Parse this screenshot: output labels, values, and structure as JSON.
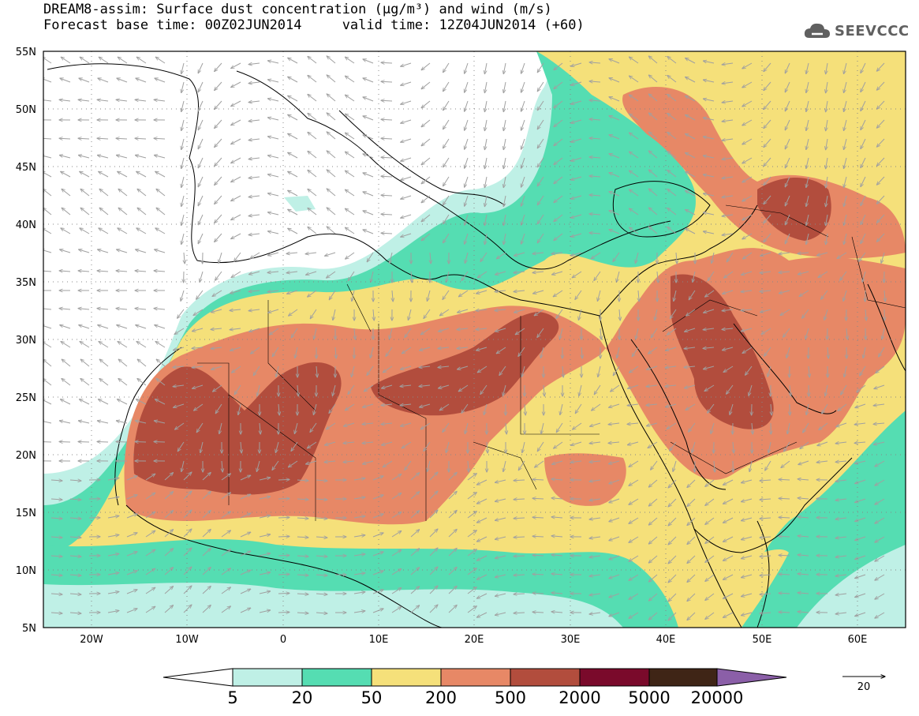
{
  "title": {
    "line1": "DREAM8-assim: Surface dust concentration (μg/m³) and wind (m/s)",
    "line2": "Forecast base time: 00Z02JUN2014     valid time: 12Z04JUN2014 (+60)"
  },
  "logo": {
    "text": "SEEVCCC",
    "icon": "cloud-icon"
  },
  "map": {
    "lat_range": [
      5,
      55
    ],
    "lon_range": [
      -25,
      65
    ],
    "y_ticks": [
      "55N",
      "50N",
      "45N",
      "40N",
      "35N",
      "30N",
      "25N",
      "20N",
      "15N",
      "10N",
      "5N"
    ],
    "x_ticks": [
      "20W",
      "10W",
      "0",
      "10E",
      "20E",
      "30E",
      "40E",
      "50E",
      "60E"
    ]
  },
  "colorbar": {
    "labels": [
      "5",
      "20",
      "50",
      "200",
      "500",
      "2000",
      "5000",
      "20000"
    ],
    "colors": [
      "#ffffff",
      "#bff0e6",
      "#55ddb2",
      "#f5e07a",
      "#e78866",
      "#b24d3d",
      "#7a0a2b",
      "#3f2516",
      "#8b5fa8"
    ]
  },
  "wind_reference": {
    "value": "20"
  }
}
